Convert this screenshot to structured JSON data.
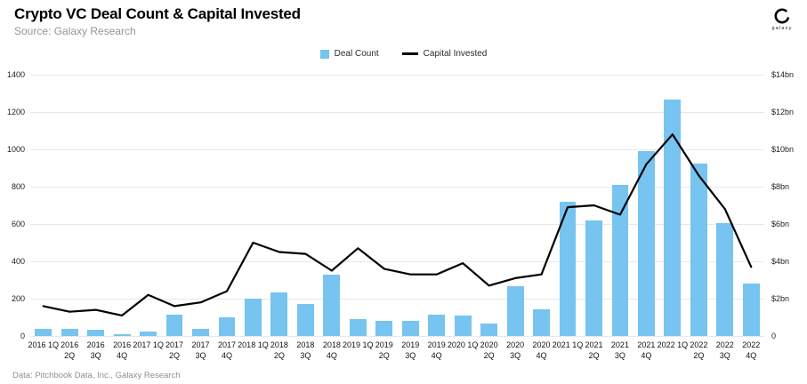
{
  "header": {
    "title": "Crypto VC Deal Count & Capital Invested",
    "source": "Source: Galaxy Research",
    "logo_label": "galaxy"
  },
  "legend": [
    {
      "label": "Deal Count",
      "color": "#76C4EF"
    },
    {
      "label": "Capital Invested",
      "color": "#000000"
    }
  ],
  "footer": {
    "note": "Data: Pitchbook Data, Inc., Galaxy Research"
  },
  "chart_data": {
    "type": "bar+line",
    "title": "Crypto VC Deal Count & Capital Invested",
    "legend_position": "top",
    "grid": true,
    "categories": [
      "2016 1Q",
      "2016 2Q",
      "2016 3Q",
      "2016 4Q",
      "2017 1Q",
      "2017 2Q",
      "2017 3Q",
      "2017 4Q",
      "2018 1Q",
      "2018 2Q",
      "2018 3Q",
      "2018 4Q",
      "2019 1Q",
      "2019 2Q",
      "2019 3Q",
      "2019 4Q",
      "2020 1Q",
      "2020 2Q",
      "2020 3Q",
      "2020 4Q",
      "2021 1Q",
      "2021 2Q",
      "2021 3Q",
      "2021 4Q",
      "2022 1Q",
      "2022 2Q",
      "2022 3Q",
      "2022 4Q"
    ],
    "series": [
      {
        "name": "Deal Count",
        "type": "bar",
        "axis": "left",
        "color": "#76C4EF",
        "values": [
          40,
          40,
          35,
          10,
          25,
          115,
          40,
          100,
          200,
          235,
          170,
          330,
          90,
          80,
          80,
          115,
          110,
          65,
          265,
          145,
          720,
          620,
          810,
          990,
          1265,
          925,
          605,
          280
        ]
      },
      {
        "name": "Capital Invested",
        "type": "line",
        "axis": "right",
        "color": "#000000",
        "unit": "$bn",
        "values": [
          1.6,
          1.3,
          1.4,
          1.1,
          2.2,
          1.6,
          1.8,
          2.4,
          5.0,
          4.5,
          4.4,
          3.5,
          4.7,
          3.6,
          3.3,
          3.3,
          3.9,
          2.7,
          3.1,
          3.3,
          6.9,
          7.0,
          6.5,
          9.2,
          10.8,
          8.6,
          6.8,
          3.7
        ]
      }
    ],
    "left_axis": {
      "min": 0,
      "max": 1400,
      "ticks": [
        0,
        200,
        400,
        600,
        800,
        1000,
        1200,
        1400
      ]
    },
    "right_axis": {
      "min": 0,
      "max": 14,
      "tick_labels": [
        "0",
        "$2bn",
        "$4bn",
        "$6bn",
        "$8bn",
        "$10bn",
        "$12bn",
        "$14bn"
      ]
    }
  }
}
